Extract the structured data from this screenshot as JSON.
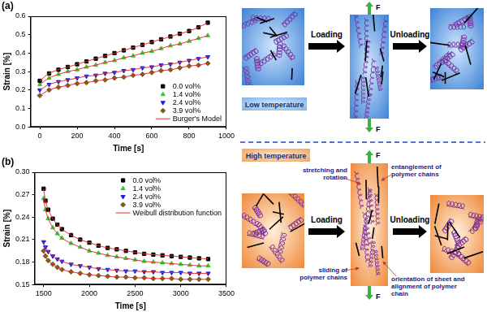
{
  "chart_data": [
    {
      "type": "scatter",
      "title": "(a)",
      "x_label": "Time [s]",
      "y_label": "Strain [%]",
      "x": [
        0,
        50,
        100,
        150,
        200,
        250,
        300,
        350,
        400,
        450,
        500,
        550,
        600,
        650,
        700,
        750,
        800,
        850,
        900
      ],
      "xlim": [
        -50,
        1000
      ],
      "xticks": [
        0,
        200,
        400,
        600,
        800,
        1000
      ],
      "ylim": [
        0,
        0.6
      ],
      "yticks": [
        {
          "value": 0,
          "label": "0.0"
        },
        0.1,
        0.2,
        0.3,
        0.4,
        0.5,
        0.6
      ],
      "grid": false,
      "legend": "lower right",
      "series": [
        {
          "name": "0.0 vol%",
          "color": "#000000",
          "marker": "square",
          "values": [
            0.25,
            0.29,
            0.31,
            0.325,
            0.34,
            0.355,
            0.37,
            0.385,
            0.4,
            0.415,
            0.43,
            0.445,
            0.46,
            0.475,
            0.49,
            0.505,
            0.52,
            0.54,
            0.565
          ]
        },
        {
          "name": "1.4 vol%",
          "color": "#33cc33",
          "marker": "triangle",
          "values": [
            0.23,
            0.265,
            0.285,
            0.3,
            0.31,
            0.325,
            0.335,
            0.35,
            0.36,
            0.375,
            0.385,
            0.4,
            0.41,
            0.425,
            0.44,
            0.45,
            0.465,
            0.48,
            0.495
          ]
        },
        {
          "name": "2.4 vol%",
          "color": "#1f1fdf",
          "marker": "triangle_down",
          "values": [
            0.2,
            0.23,
            0.245,
            0.255,
            0.265,
            0.275,
            0.28,
            0.29,
            0.295,
            0.305,
            0.31,
            0.32,
            0.325,
            0.335,
            0.34,
            0.35,
            0.36,
            0.37,
            0.38
          ]
        },
        {
          "name": "3.9 vol%",
          "color": "#7a5c1a",
          "marker": "diamond",
          "values": [
            0.17,
            0.2,
            0.215,
            0.225,
            0.235,
            0.24,
            0.25,
            0.255,
            0.265,
            0.27,
            0.28,
            0.285,
            0.295,
            0.305,
            0.31,
            0.32,
            0.33,
            0.335,
            0.345
          ]
        },
        {
          "name": "Burger's Model",
          "color": "#e03030",
          "type": "line",
          "line_style": "solid",
          "values": [
            0.25,
            0.29,
            0.31,
            0.325,
            0.34,
            0.355,
            0.37,
            0.385,
            0.4,
            0.415,
            0.43,
            0.445,
            0.46,
            0.475,
            0.49,
            0.505,
            0.52,
            0.54,
            0.565
          ]
        },
        {
          "name": "Burger's Model",
          "color": "#e03030",
          "type": "line",
          "line_style": "solid",
          "values": [
            0.23,
            0.265,
            0.285,
            0.3,
            0.31,
            0.325,
            0.335,
            0.35,
            0.36,
            0.375,
            0.385,
            0.4,
            0.41,
            0.425,
            0.44,
            0.45,
            0.465,
            0.48,
            0.495
          ]
        },
        {
          "name": "Burger's Model",
          "color": "#e03030",
          "type": "line",
          "line_style": "solid",
          "values": [
            0.2,
            0.23,
            0.245,
            0.255,
            0.265,
            0.275,
            0.28,
            0.29,
            0.295,
            0.305,
            0.31,
            0.32,
            0.325,
            0.335,
            0.34,
            0.35,
            0.36,
            0.37,
            0.38
          ]
        },
        {
          "name": "Burger's Model",
          "color": "#e03030",
          "type": "line",
          "line_style": "solid",
          "values": [
            0.17,
            0.2,
            0.215,
            0.225,
            0.235,
            0.24,
            0.25,
            0.255,
            0.265,
            0.27,
            0.28,
            0.285,
            0.295,
            0.305,
            0.31,
            0.32,
            0.33,
            0.335,
            0.345
          ]
        }
      ]
    },
    {
      "type": "scatter",
      "title": "(b)",
      "x_label": "Time [s]",
      "y_label": "Strain [%]",
      "x": [
        1500,
        1520,
        1550,
        1600,
        1650,
        1700,
        1800,
        1900,
        2000,
        2100,
        2200,
        2300,
        2400,
        2500,
        2600,
        2700,
        2800,
        2900,
        3000,
        3100,
        3200,
        3300
      ],
      "xlim": [
        1400,
        3500
      ],
      "xticks": [
        1500,
        2000,
        2500,
        3000,
        3500
      ],
      "ylim": [
        0.15,
        0.3
      ],
      "yticks": [
        0.15,
        0.18,
        0.21,
        0.24,
        0.27,
        {
          "value": 0.3,
          "label": "0.30"
        }
      ],
      "grid": false,
      "legend": "upper right",
      "series": [
        {
          "name": "0.0 vol%",
          "color": "#000000",
          "marker": "square",
          "values": [
            0.278,
            0.262,
            0.25,
            0.238,
            0.23,
            0.224,
            0.216,
            0.21,
            0.206,
            0.202,
            0.199,
            0.197,
            0.195,
            0.193,
            0.191,
            0.19,
            0.189,
            0.188,
            0.187,
            0.186,
            0.185,
            0.184
          ]
        },
        {
          "name": "1.4 vol%",
          "color": "#33cc33",
          "marker": "triangle",
          "values": [
            0.265,
            0.25,
            0.238,
            0.226,
            0.218,
            0.212,
            0.205,
            0.2,
            0.195,
            0.192,
            0.189,
            0.187,
            0.185,
            0.183,
            0.181,
            0.18,
            0.179,
            0.178,
            0.177,
            0.176,
            0.175,
            0.175
          ]
        },
        {
          "name": "2.4 vol%",
          "color": "#1f1fdf",
          "marker": "triangle_down",
          "values": [
            0.207,
            0.2,
            0.194,
            0.188,
            0.184,
            0.181,
            0.177,
            0.175,
            0.173,
            0.171,
            0.17,
            0.169,
            0.168,
            0.168,
            0.167,
            0.167,
            0.166,
            0.166,
            0.166,
            0.165,
            0.165,
            0.165
          ]
        },
        {
          "name": "3.9 vol%",
          "color": "#7a5c1a",
          "marker": "diamond",
          "values": [
            0.195,
            0.188,
            0.182,
            0.177,
            0.173,
            0.17,
            0.167,
            0.165,
            0.163,
            0.162,
            0.161,
            0.16,
            0.16,
            0.159,
            0.159,
            0.158,
            0.158,
            0.158,
            0.157,
            0.157,
            0.157,
            0.157
          ]
        },
        {
          "name": "Weibull distribution function",
          "color": "#e03030",
          "type": "line",
          "line_style": "solid",
          "values": [
            0.278,
            0.262,
            0.25,
            0.238,
            0.23,
            0.224,
            0.216,
            0.21,
            0.206,
            0.202,
            0.199,
            0.197,
            0.195,
            0.193,
            0.191,
            0.19,
            0.189,
            0.188,
            0.187,
            0.186,
            0.185,
            0.184
          ]
        },
        {
          "name": "Weibull distribution function",
          "color": "#e03030",
          "type": "line",
          "line_style": "solid",
          "values": [
            0.265,
            0.25,
            0.238,
            0.226,
            0.218,
            0.212,
            0.205,
            0.2,
            0.195,
            0.192,
            0.189,
            0.187,
            0.185,
            0.183,
            0.181,
            0.18,
            0.179,
            0.178,
            0.177,
            0.176,
            0.175,
            0.175
          ]
        },
        {
          "name": "Weibull distribution function",
          "color": "#e03030",
          "type": "line",
          "line_style": "solid",
          "values": [
            0.207,
            0.2,
            0.194,
            0.188,
            0.184,
            0.181,
            0.177,
            0.175,
            0.173,
            0.171,
            0.17,
            0.169,
            0.168,
            0.168,
            0.167,
            0.167,
            0.166,
            0.166,
            0.166,
            0.165,
            0.165,
            0.165
          ]
        },
        {
          "name": "Weibull distribution function",
          "color": "#e03030",
          "type": "line",
          "line_style": "solid",
          "values": [
            0.195,
            0.188,
            0.182,
            0.177,
            0.173,
            0.17,
            0.167,
            0.165,
            0.163,
            0.162,
            0.161,
            0.16,
            0.16,
            0.159,
            0.159,
            0.158,
            0.158,
            0.158,
            0.157,
            0.157,
            0.157,
            0.157
          ]
        }
      ]
    }
  ],
  "diagram": {
    "low": {
      "label": "Low temperature",
      "steps": [
        "Loading",
        "Unloading"
      ],
      "force": "F"
    },
    "high": {
      "label": "High temperature",
      "steps": [
        "Loading",
        "Unloading"
      ],
      "force": "F",
      "annotations": [
        "stretching and rotation",
        "entanglement of polymer chains",
        "sliding of polymer chains",
        "orientation of sheet and alignment of polymer chain"
      ]
    }
  }
}
